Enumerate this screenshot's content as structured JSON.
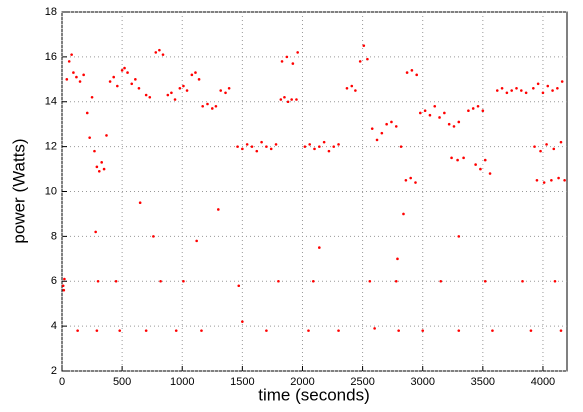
{
  "chart_data": {
    "type": "scatter",
    "xlabel": "time (seconds)",
    "ylabel": "power (Watts)",
    "color": "#ff0000",
    "grid": true,
    "xlim": [
      0,
      4200
    ],
    "ylim": [
      2,
      18
    ],
    "xticks": [
      0,
      500,
      1000,
      1500,
      2000,
      2500,
      3000,
      3500,
      4000
    ],
    "yticks": [
      2,
      4,
      6,
      8,
      10,
      12,
      14,
      16,
      18
    ],
    "x": [
      10,
      20,
      15,
      40,
      60,
      80,
      95,
      120,
      150,
      180,
      210,
      230,
      250,
      270,
      290,
      310,
      330,
      350,
      370,
      400,
      430,
      460,
      500,
      520,
      545,
      580,
      610,
      640,
      700,
      730,
      780,
      810,
      840,
      880,
      910,
      940,
      980,
      1010,
      1040,
      1080,
      1110,
      1140,
      1170,
      1210,
      1250,
      1280,
      1320,
      1360,
      1390,
      1460,
      1500,
      1540,
      1580,
      1620,
      1660,
      1700,
      1740,
      1780,
      1820,
      1850,
      1880,
      1910,
      1950,
      1830,
      1870,
      1920,
      1960,
      2020,
      2060,
      2100,
      2140,
      2180,
      2220,
      2260,
      2300,
      2370,
      2410,
      2440,
      2480,
      2510,
      2540,
      2580,
      2620,
      2660,
      2700,
      2740,
      2780,
      2820,
      2860,
      2900,
      2940,
      2870,
      2910,
      2950,
      2980,
      3020,
      3060,
      3100,
      3140,
      3180,
      3220,
      3260,
      3300,
      3240,
      3290,
      3340,
      3380,
      3420,
      3460,
      3500,
      3440,
      3480,
      3520,
      3560,
      3620,
      3660,
      3700,
      3740,
      3780,
      3820,
      3860,
      3920,
      3960,
      4000,
      4040,
      4080,
      4120,
      4160,
      3930,
      3980,
      4030,
      4090,
      4150,
      3950,
      4010,
      4070,
      4130,
      4180,
      130,
      290,
      480,
      700,
      950,
      1160,
      1500,
      1700,
      2050,
      2300,
      2600,
      2800,
      3000,
      3300,
      3580,
      3900,
      4150,
      300,
      450,
      820,
      1010,
      1470,
      1800,
      2090,
      2560,
      2780,
      3150,
      3520,
      3830,
      4100,
      280,
      760,
      1120,
      2140,
      2840,
      3300,
      2790,
      650,
      1300
    ],
    "values": [
      5.8,
      6.1,
      5.6,
      15.0,
      15.8,
      16.1,
      15.3,
      15.1,
      14.9,
      15.2,
      13.5,
      12.4,
      14.2,
      11.8,
      11.1,
      10.9,
      11.3,
      11.0,
      12.5,
      14.9,
      15.1,
      14.7,
      15.4,
      15.5,
      15.3,
      14.8,
      15.0,
      14.6,
      14.3,
      14.2,
      16.2,
      16.3,
      16.1,
      14.3,
      14.4,
      14.1,
      14.6,
      14.7,
      14.5,
      15.2,
      15.3,
      15.0,
      13.8,
      13.9,
      13.7,
      13.8,
      14.5,
      14.4,
      14.6,
      12.0,
      11.9,
      12.1,
      12.0,
      11.8,
      12.2,
      12.0,
      11.9,
      12.1,
      14.1,
      14.2,
      14.0,
      14.1,
      14.1,
      15.8,
      16.0,
      15.7,
      16.2,
      12.0,
      12.1,
      11.9,
      12.0,
      12.2,
      11.8,
      12.0,
      12.1,
      14.6,
      14.7,
      14.5,
      15.8,
      16.5,
      15.9,
      12.8,
      12.3,
      12.6,
      13.0,
      13.1,
      12.9,
      12.0,
      10.5,
      10.6,
      10.4,
      15.3,
      15.4,
      15.2,
      13.5,
      13.6,
      13.4,
      13.8,
      13.3,
      13.5,
      13.0,
      12.9,
      13.1,
      11.5,
      11.4,
      11.5,
      13.6,
      13.7,
      13.8,
      13.6,
      11.2,
      11.0,
      11.4,
      10.8,
      14.5,
      14.6,
      14.4,
      14.5,
      14.6,
      14.5,
      14.4,
      14.6,
      14.8,
      14.4,
      14.7,
      14.5,
      14.6,
      14.9,
      12.0,
      11.8,
      12.1,
      11.9,
      12.2,
      10.5,
      10.4,
      10.5,
      10.6,
      10.5,
      3.8,
      3.8,
      3.8,
      3.8,
      3.8,
      3.8,
      4.2,
      3.8,
      3.8,
      3.8,
      3.9,
      3.8,
      3.8,
      3.8,
      3.8,
      3.8,
      3.8,
      6.0,
      6.0,
      6.0,
      6.0,
      5.8,
      6.0,
      6.0,
      6.0,
      6.0,
      6.0,
      6.0,
      6.0,
      6.0,
      8.2,
      8.0,
      7.8,
      7.5,
      9.0,
      8.0,
      7.0,
      9.5,
      9.2
    ]
  }
}
